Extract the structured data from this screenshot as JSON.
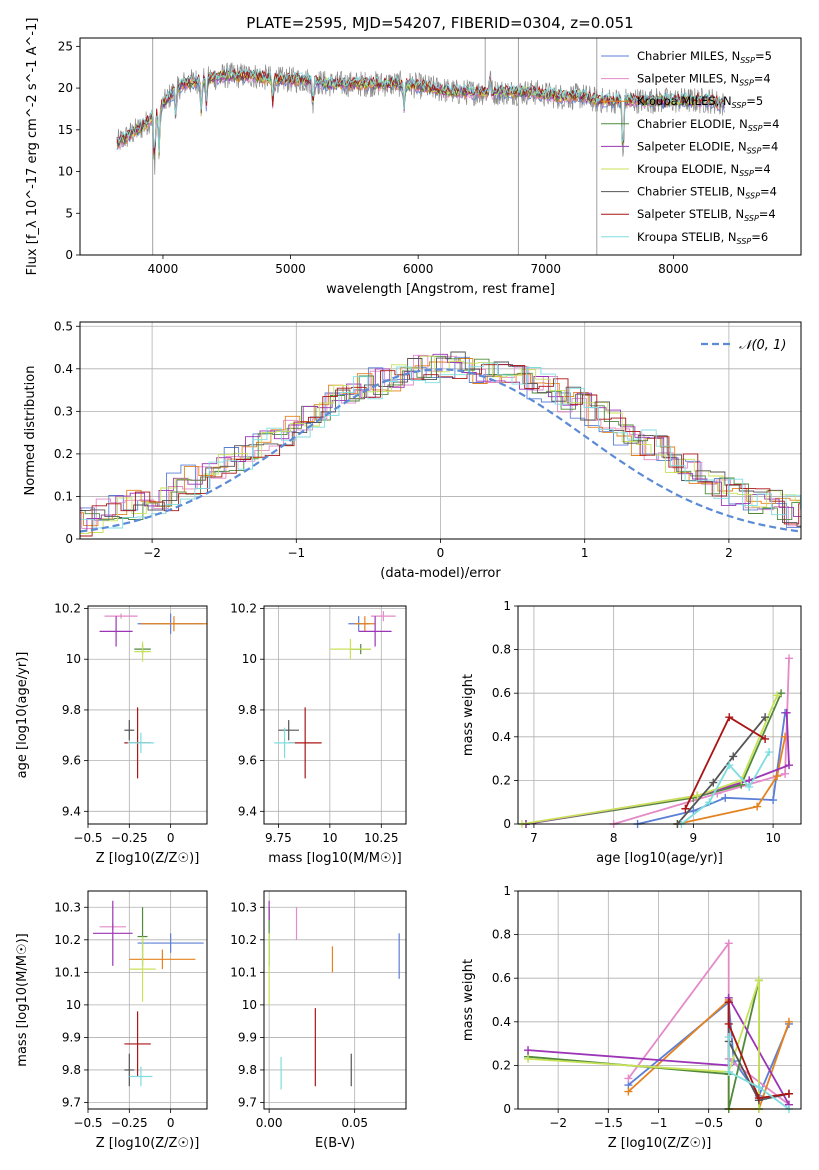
{
  "figure_title": "PLATE=2595, MJD=54207, FIBERID=0304, z=0.051",
  "palette": {
    "Chabrier MILES": "#5b7fd6",
    "Salpeter MILES": "#e48ac8",
    "Kroupa MILES": "#e5821e",
    "Chabrier ELODIE": "#4f8a3a",
    "Salpeter ELODIE": "#9b35b5",
    "Kroupa ELODIE": "#c8e25a",
    "Chabrier STELIB": "#555555",
    "Salpeter STELIB": "#aa1515",
    "Kroupa STELIB": "#7fdde0",
    "data": "#8a8a8a",
    "normal": "#5b8bd6"
  },
  "chart_data": [
    {
      "id": "spectrum",
      "type": "line",
      "title": "PLATE=2595, MJD=54207, FIBERID=0304, z=0.051",
      "xlabel": "wavelength [Angstrom, rest frame]",
      "ylabel": "Flux [f_λ 10^-17 erg cm^-2 s^-1 A^-1]",
      "xlim": [
        3350,
        9000
      ],
      "ylim": [
        0,
        26
      ],
      "xticks": [
        4000,
        5000,
        6000,
        7000,
        8000
      ],
      "yticks": [
        0,
        5,
        10,
        15,
        20,
        25
      ],
      "grid": false,
      "legend_position": "top-right",
      "continuum": {
        "x": [
          3650,
          3750,
          3850,
          3950,
          4050,
          4150,
          4300,
          4500,
          4700,
          4900,
          5100,
          5300,
          5500,
          5700,
          5900,
          6100,
          6300,
          6500,
          6700,
          6900,
          7100,
          7300,
          7400,
          7500,
          7700,
          7900,
          8100,
          8300,
          8400
        ],
        "y": [
          13.5,
          14.5,
          15.5,
          17.0,
          19.0,
          20.5,
          21.0,
          21.5,
          21.5,
          21.0,
          21.0,
          20.5,
          20.5,
          20.5,
          20.5,
          20.0,
          19.5,
          19.5,
          19.5,
          19.5,
          19.0,
          19.0,
          18.5,
          18.5,
          18.5,
          18.5,
          18.5,
          18.5,
          18.0
        ]
      },
      "series": [
        {
          "name": "Chabrier MILES",
          "nssp": "5"
        },
        {
          "name": "Salpeter MILES",
          "nssp": "4"
        },
        {
          "name": "Kroupa MILES",
          "nssp": "5"
        },
        {
          "name": "Chabrier ELODIE",
          "nssp": "4"
        },
        {
          "name": "Salpeter ELODIE",
          "nssp": "4"
        },
        {
          "name": "Kroupa ELODIE",
          "nssp": "4"
        },
        {
          "name": "Chabrier STELIB",
          "nssp": "4"
        },
        {
          "name": "Salpeter STELIB",
          "nssp": "4"
        },
        {
          "name": "Kroupa STELIB",
          "nssp": "6"
        }
      ]
    },
    {
      "id": "residuals",
      "type": "histogram",
      "xlabel": "(data-model)/error",
      "ylabel": "Normed distribution",
      "xlim": [
        -2.5,
        2.5
      ],
      "ylim": [
        0,
        0.51
      ],
      "xticks": [
        -2,
        -1,
        0,
        1,
        2
      ],
      "yticks": [
        0.0,
        0.1,
        0.2,
        0.3,
        0.4,
        0.5
      ],
      "grid": true,
      "legend_position": "top-right",
      "legend": "𝒩(0, 1)",
      "bin_width": 0.1,
      "base_hist": [
        0.02,
        0.03,
        0.035,
        0.04,
        0.04,
        0.05,
        0.06,
        0.07,
        0.08,
        0.09,
        0.1,
        0.12,
        0.14,
        0.15,
        0.17,
        0.19,
        0.21,
        0.23,
        0.25,
        0.27,
        0.29,
        0.31,
        0.33,
        0.35,
        0.36,
        0.37,
        0.38,
        0.39,
        0.4,
        0.4,
        0.41,
        0.41,
        0.4,
        0.4,
        0.39,
        0.38,
        0.36,
        0.35,
        0.33,
        0.31,
        0.29,
        0.27,
        0.25,
        0.23,
        0.21,
        0.19,
        0.17,
        0.15,
        0.13,
        0.11,
        0.1,
        0.09,
        0.08,
        0.07,
        0.06,
        0.05,
        0.045,
        0.04,
        0.035,
        0.03
      ]
    },
    {
      "id": "age-vs-Z",
      "type": "errorbar",
      "xlabel": "Z [log10(Z/Z☉)]",
      "ylabel": "age  [log10(age/yr)]",
      "xlim": [
        -0.5,
        0.22
      ],
      "ylim": [
        9.35,
        10.21
      ],
      "xticks": [
        -0.5,
        -0.25,
        0.0
      ],
      "yticks": [
        9.4,
        9.6,
        9.8,
        10.0,
        10.2
      ],
      "grid": true,
      "points": [
        {
          "series": "Chabrier MILES",
          "x": 0.0,
          "y": 10.14,
          "xerr": 0.2,
          "yerr": 0.04
        },
        {
          "series": "Salpeter MILES",
          "x": -0.3,
          "y": 10.17,
          "xerr": 0.1,
          "yerr": 0.01
        },
        {
          "series": "Kroupa MILES",
          "x": 0.02,
          "y": 10.14,
          "xerr": 0.2,
          "yerr": 0.03
        },
        {
          "series": "Chabrier ELODIE",
          "x": -0.17,
          "y": 10.04,
          "xerr": 0.05,
          "yerr": 0.02
        },
        {
          "series": "Salpeter ELODIE",
          "x": -0.33,
          "y": 10.11,
          "xerr": 0.1,
          "yerr": 0.06
        },
        {
          "series": "Kroupa ELODIE",
          "x": -0.17,
          "y": 10.03,
          "xerr": 0.05,
          "yerr": 0.04
        },
        {
          "series": "Chabrier STELIB",
          "x": -0.25,
          "y": 9.72,
          "xerr": 0.03,
          "yerr": 0.04
        },
        {
          "series": "Salpeter STELIB",
          "x": -0.2,
          "y": 9.67,
          "xerr": 0.08,
          "yerr": 0.14
        },
        {
          "series": "Kroupa STELIB",
          "x": -0.18,
          "y": 9.67,
          "xerr": 0.08,
          "yerr": 0.04
        }
      ]
    },
    {
      "id": "age-vs-mass",
      "type": "errorbar",
      "xlabel": "mass [log10(M/M☉)]",
      "ylabel": "",
      "xlim": [
        9.68,
        10.37
      ],
      "ylim": [
        9.35,
        10.21
      ],
      "xticks": [
        9.75,
        10.0,
        10.25
      ],
      "yticks": [
        9.4,
        9.6,
        9.8,
        10.0,
        10.2
      ],
      "grid": true,
      "points": [
        {
          "series": "Chabrier MILES",
          "x": 10.14,
          "y": 10.14,
          "xerr": 0.05,
          "yerr": 0.03
        },
        {
          "series": "Salpeter MILES",
          "x": 10.26,
          "y": 10.17,
          "xerr": 0.06,
          "yerr": 0.02
        },
        {
          "series": "Kroupa MILES",
          "x": 10.17,
          "y": 10.14,
          "xerr": 0.05,
          "yerr": 0.03
        },
        {
          "series": "Chabrier ELODIE",
          "x": 10.15,
          "y": 10.04,
          "xerr": 0.05,
          "yerr": 0.02
        },
        {
          "series": "Salpeter ELODIE",
          "x": 10.22,
          "y": 10.11,
          "xerr": 0.08,
          "yerr": 0.06
        },
        {
          "series": "Kroupa ELODIE",
          "x": 10.1,
          "y": 10.04,
          "xerr": 0.1,
          "yerr": 0.04
        },
        {
          "series": "Chabrier STELIB",
          "x": 9.8,
          "y": 9.72,
          "xerr": 0.05,
          "yerr": 0.04
        },
        {
          "series": "Salpeter STELIB",
          "x": 9.88,
          "y": 9.67,
          "xerr": 0.08,
          "yerr": 0.14
        },
        {
          "series": "Kroupa STELIB",
          "x": 9.78,
          "y": 9.67,
          "xerr": 0.05,
          "yerr": 0.06
        }
      ]
    },
    {
      "id": "mass-weight-vs-age",
      "type": "line",
      "xlabel": "age  [log10(age/yr)]",
      "ylabel": "mass weight",
      "xlim": [
        6.8,
        10.35
      ],
      "ylim": [
        0,
        1.0
      ],
      "xticks": [
        7,
        8,
        9,
        10
      ],
      "yticks": [
        0.0,
        0.2,
        0.4,
        0.6,
        0.8,
        1.0
      ],
      "grid": true,
      "series": [
        {
          "name": "Chabrier MILES",
          "x": [
            8.3,
            9.0,
            9.4,
            10.0,
            10.15
          ],
          "y": [
            0.0,
            0.06,
            0.12,
            0.11,
            0.51
          ]
        },
        {
          "name": "Salpeter MILES",
          "x": [
            8.0,
            9.3,
            10.15,
            10.2
          ],
          "y": [
            0.0,
            0.14,
            0.23,
            0.76
          ]
        },
        {
          "name": "Kroupa MILES",
          "x": [
            8.8,
            9.8,
            10.05,
            10.15
          ],
          "y": [
            0.0,
            0.08,
            0.22,
            0.4
          ]
        },
        {
          "name": "Chabrier ELODIE",
          "x": [
            6.9,
            9.0,
            9.6,
            10.1
          ],
          "y": [
            0.0,
            0.12,
            0.18,
            0.6
          ]
        },
        {
          "name": "Salpeter ELODIE",
          "x": [
            6.9,
            9.05,
            9.7,
            10.2,
            10.17
          ],
          "y": [
            0.0,
            0.13,
            0.2,
            0.27,
            0.51
          ]
        },
        {
          "name": "Kroupa ELODIE",
          "x": [
            6.85,
            9.05,
            9.6,
            10.05
          ],
          "y": [
            0.0,
            0.13,
            0.2,
            0.59
          ]
        },
        {
          "name": "Chabrier STELIB",
          "x": [
            8.8,
            9.25,
            9.5,
            9.9
          ],
          "y": [
            0.0,
            0.19,
            0.31,
            0.49
          ]
        },
        {
          "name": "Salpeter STELIB",
          "x": [
            8.9,
            9.45,
            9.9
          ],
          "y": [
            0.07,
            0.49,
            0.39
          ]
        },
        {
          "name": "Kroupa STELIB",
          "x": [
            8.85,
            9.2,
            9.45,
            9.7,
            9.95
          ],
          "y": [
            0.0,
            0.1,
            0.27,
            0.17,
            0.33
          ]
        }
      ]
    },
    {
      "id": "mass-vs-Z",
      "type": "errorbar",
      "xlabel": "Z [log10(Z/Z☉)]",
      "ylabel": "mass [log10(M/M☉)]",
      "xlim": [
        -0.5,
        0.22
      ],
      "ylim": [
        9.68,
        10.35
      ],
      "xticks": [
        -0.5,
        -0.25,
        0.0
      ],
      "yticks": [
        9.7,
        9.8,
        9.9,
        10.0,
        10.1,
        10.2,
        10.3
      ],
      "grid": true,
      "points": [
        {
          "series": "Chabrier MILES",
          "x": 0.0,
          "y": 10.19,
          "xerr": 0.2,
          "yerr": 0.03
        },
        {
          "series": "Salpeter MILES",
          "x": -0.35,
          "y": 10.24,
          "xerr": 0.08,
          "yerr": 0.01
        },
        {
          "series": "Kroupa MILES",
          "x": -0.05,
          "y": 10.14,
          "xerr": 0.2,
          "yerr": 0.03
        },
        {
          "series": "Chabrier ELODIE",
          "x": -0.17,
          "y": 10.21,
          "xerr": 0.03,
          "yerr": 0.09
        },
        {
          "series": "Salpeter ELODIE",
          "x": -0.35,
          "y": 10.22,
          "xerr": 0.12,
          "yerr": 0.1
        },
        {
          "series": "Kroupa ELODIE",
          "x": -0.17,
          "y": 10.11,
          "xerr": 0.08,
          "yerr": 0.1
        },
        {
          "series": "Chabrier STELIB",
          "x": -0.25,
          "y": 9.8,
          "xerr": 0.03,
          "yerr": 0.05
        },
        {
          "series": "Salpeter STELIB",
          "x": -0.2,
          "y": 9.88,
          "xerr": 0.08,
          "yerr": 0.1
        },
        {
          "series": "Kroupa STELIB",
          "x": -0.18,
          "y": 9.78,
          "xerr": 0.07,
          "yerr": 0.03
        }
      ]
    },
    {
      "id": "mass-vs-EBV",
      "type": "errorbar",
      "xlabel": "E(B-V)",
      "ylabel": "",
      "xlim": [
        -0.003,
        0.08
      ],
      "ylim": [
        9.68,
        10.35
      ],
      "xticks": [
        0.0,
        0.05
      ],
      "yticks": [
        9.7,
        9.8,
        9.9,
        10.0,
        10.1,
        10.2,
        10.3
      ],
      "grid": true,
      "points": [
        {
          "series": "Chabrier MILES",
          "x": 0.076,
          "y": 10.15,
          "xerr": 0,
          "yerr": 0.07
        },
        {
          "series": "Salpeter MILES",
          "x": 0.016,
          "y": 10.25,
          "xerr": 0,
          "yerr": 0.05
        },
        {
          "series": "Kroupa MILES",
          "x": 0.037,
          "y": 10.14,
          "xerr": 0,
          "yerr": 0.04
        },
        {
          "series": "Chabrier ELODIE",
          "x": 0.0,
          "y": 10.21,
          "xerr": 0,
          "yerr": 0.09
        },
        {
          "series": "Salpeter ELODIE",
          "x": 0.0,
          "y": 10.29,
          "xerr": 0,
          "yerr": 0.03
        },
        {
          "series": "Kroupa ELODIE",
          "x": 0.0,
          "y": 10.11,
          "xerr": 0,
          "yerr": 0.11
        },
        {
          "series": "Chabrier STELIB",
          "x": 0.048,
          "y": 9.8,
          "xerr": 0,
          "yerr": 0.05
        },
        {
          "series": "Salpeter STELIB",
          "x": 0.027,
          "y": 9.87,
          "xerr": 0,
          "yerr": 0.12
        },
        {
          "series": "Kroupa STELIB",
          "x": 0.007,
          "y": 9.79,
          "xerr": 0,
          "yerr": 0.05
        }
      ]
    },
    {
      "id": "mass-weight-vs-Z",
      "type": "line",
      "xlabel": "Z [log10(Z/Z☉)]",
      "ylabel": "mass weight",
      "xlim": [
        -2.4,
        0.42
      ],
      "ylim": [
        0,
        1.0
      ],
      "xticks": [
        -2.0,
        -1.5,
        -1.0,
        -0.5,
        0.0
      ],
      "yticks": [
        0.0,
        0.2,
        0.4,
        0.6,
        0.8,
        1.0
      ],
      "grid": true,
      "series": [
        {
          "name": "Chabrier MILES",
          "x": [
            -1.3,
            -0.3,
            -0.25,
            0.0,
            0.3
          ],
          "y": [
            0.11,
            0.49,
            0.22,
            0.06,
            0.39
          ]
        },
        {
          "name": "Salpeter MILES",
          "x": [
            -1.3,
            -0.3,
            -0.3,
            0.3
          ],
          "y": [
            0.14,
            0.76,
            0.23,
            0.02
          ]
        },
        {
          "name": "Kroupa MILES",
          "x": [
            -1.3,
            -0.3,
            -0.3,
            0.0,
            0.3
          ],
          "y": [
            0.08,
            0.5,
            0.0,
            0.0,
            0.4
          ]
        },
        {
          "name": "Chabrier ELODIE",
          "x": [
            -2.3,
            -0.3,
            -0.3,
            0.0,
            0.0
          ],
          "y": [
            0.24,
            0.16,
            0.0,
            0.59,
            0.0
          ]
        },
        {
          "name": "Salpeter ELODIE",
          "x": [
            -2.3,
            -0.3,
            -0.3,
            0.3
          ],
          "y": [
            0.27,
            0.2,
            0.51,
            0.02
          ]
        },
        {
          "name": "Kroupa ELODIE",
          "x": [
            -2.3,
            -0.3,
            0.0,
            0.0
          ],
          "y": [
            0.23,
            0.17,
            0.59,
            0.0
          ]
        },
        {
          "name": "Chabrier STELIB",
          "x": [
            -0.3,
            -0.3,
            0.0,
            0.3
          ],
          "y": [
            0.49,
            0.31,
            0.04,
            0.07
          ]
        },
        {
          "name": "Salpeter STELIB",
          "x": [
            -0.3,
            -0.3,
            0.0,
            0.3
          ],
          "y": [
            0.49,
            0.39,
            0.05,
            0.07
          ]
        },
        {
          "name": "Kroupa STELIB",
          "x": [
            -0.3,
            -0.3,
            0.0,
            0.3
          ],
          "y": [
            0.33,
            0.17,
            0.1,
            0.0
          ]
        }
      ]
    }
  ]
}
